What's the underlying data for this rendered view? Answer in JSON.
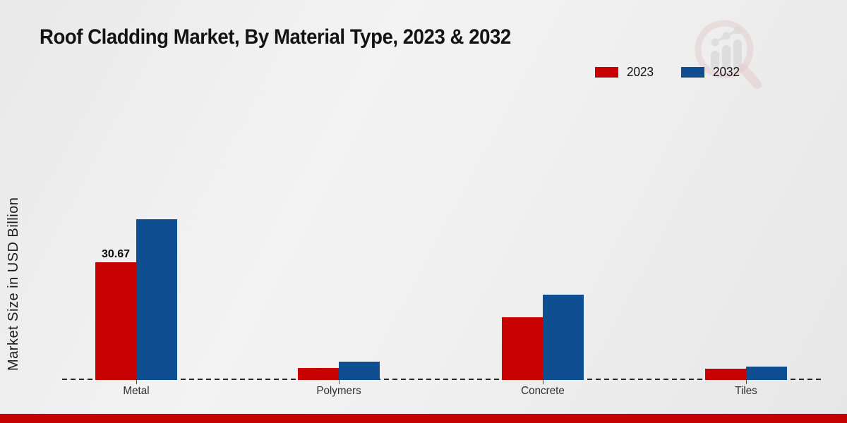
{
  "header": {
    "title": "Roof Cladding Market, By Material Type, 2023 & 2032"
  },
  "axis": {
    "y_label": "Market Size in USD Billion"
  },
  "legend": {
    "items": [
      {
        "label": "2023",
        "color": "#c80202"
      },
      {
        "label": "2032",
        "color": "#0f4e91"
      }
    ]
  },
  "chart_data": {
    "type": "bar",
    "title": "Roof Cladding Market, By Material Type, 2023 & 2032",
    "xlabel": "",
    "ylabel": "Market Size in USD Billion",
    "categories": [
      "Metal",
      "Polymers",
      "Concrete",
      "Tiles"
    ],
    "series": [
      {
        "name": "2023",
        "color": "#c80202",
        "values": [
          30.67,
          3.1,
          16.4,
          2.9
        ]
      },
      {
        "name": "2032",
        "color": "#0f4e91",
        "values": [
          41.9,
          4.8,
          22.2,
          3.5
        ]
      }
    ],
    "bar_labels": [
      {
        "category": "Metal",
        "series": "2023",
        "text": "30.67"
      }
    ],
    "ylim": [
      0,
      45
    ],
    "grid": false,
    "baseline_style": "dashed",
    "legend_position": "top-right"
  },
  "colors": {
    "bar_2023": "#c80202",
    "bar_2032": "#0f4e91",
    "bottom_strip": "#c50000",
    "background": "#ededed"
  },
  "icons": {
    "watermark": "magnifier-bar-chart-logo"
  }
}
